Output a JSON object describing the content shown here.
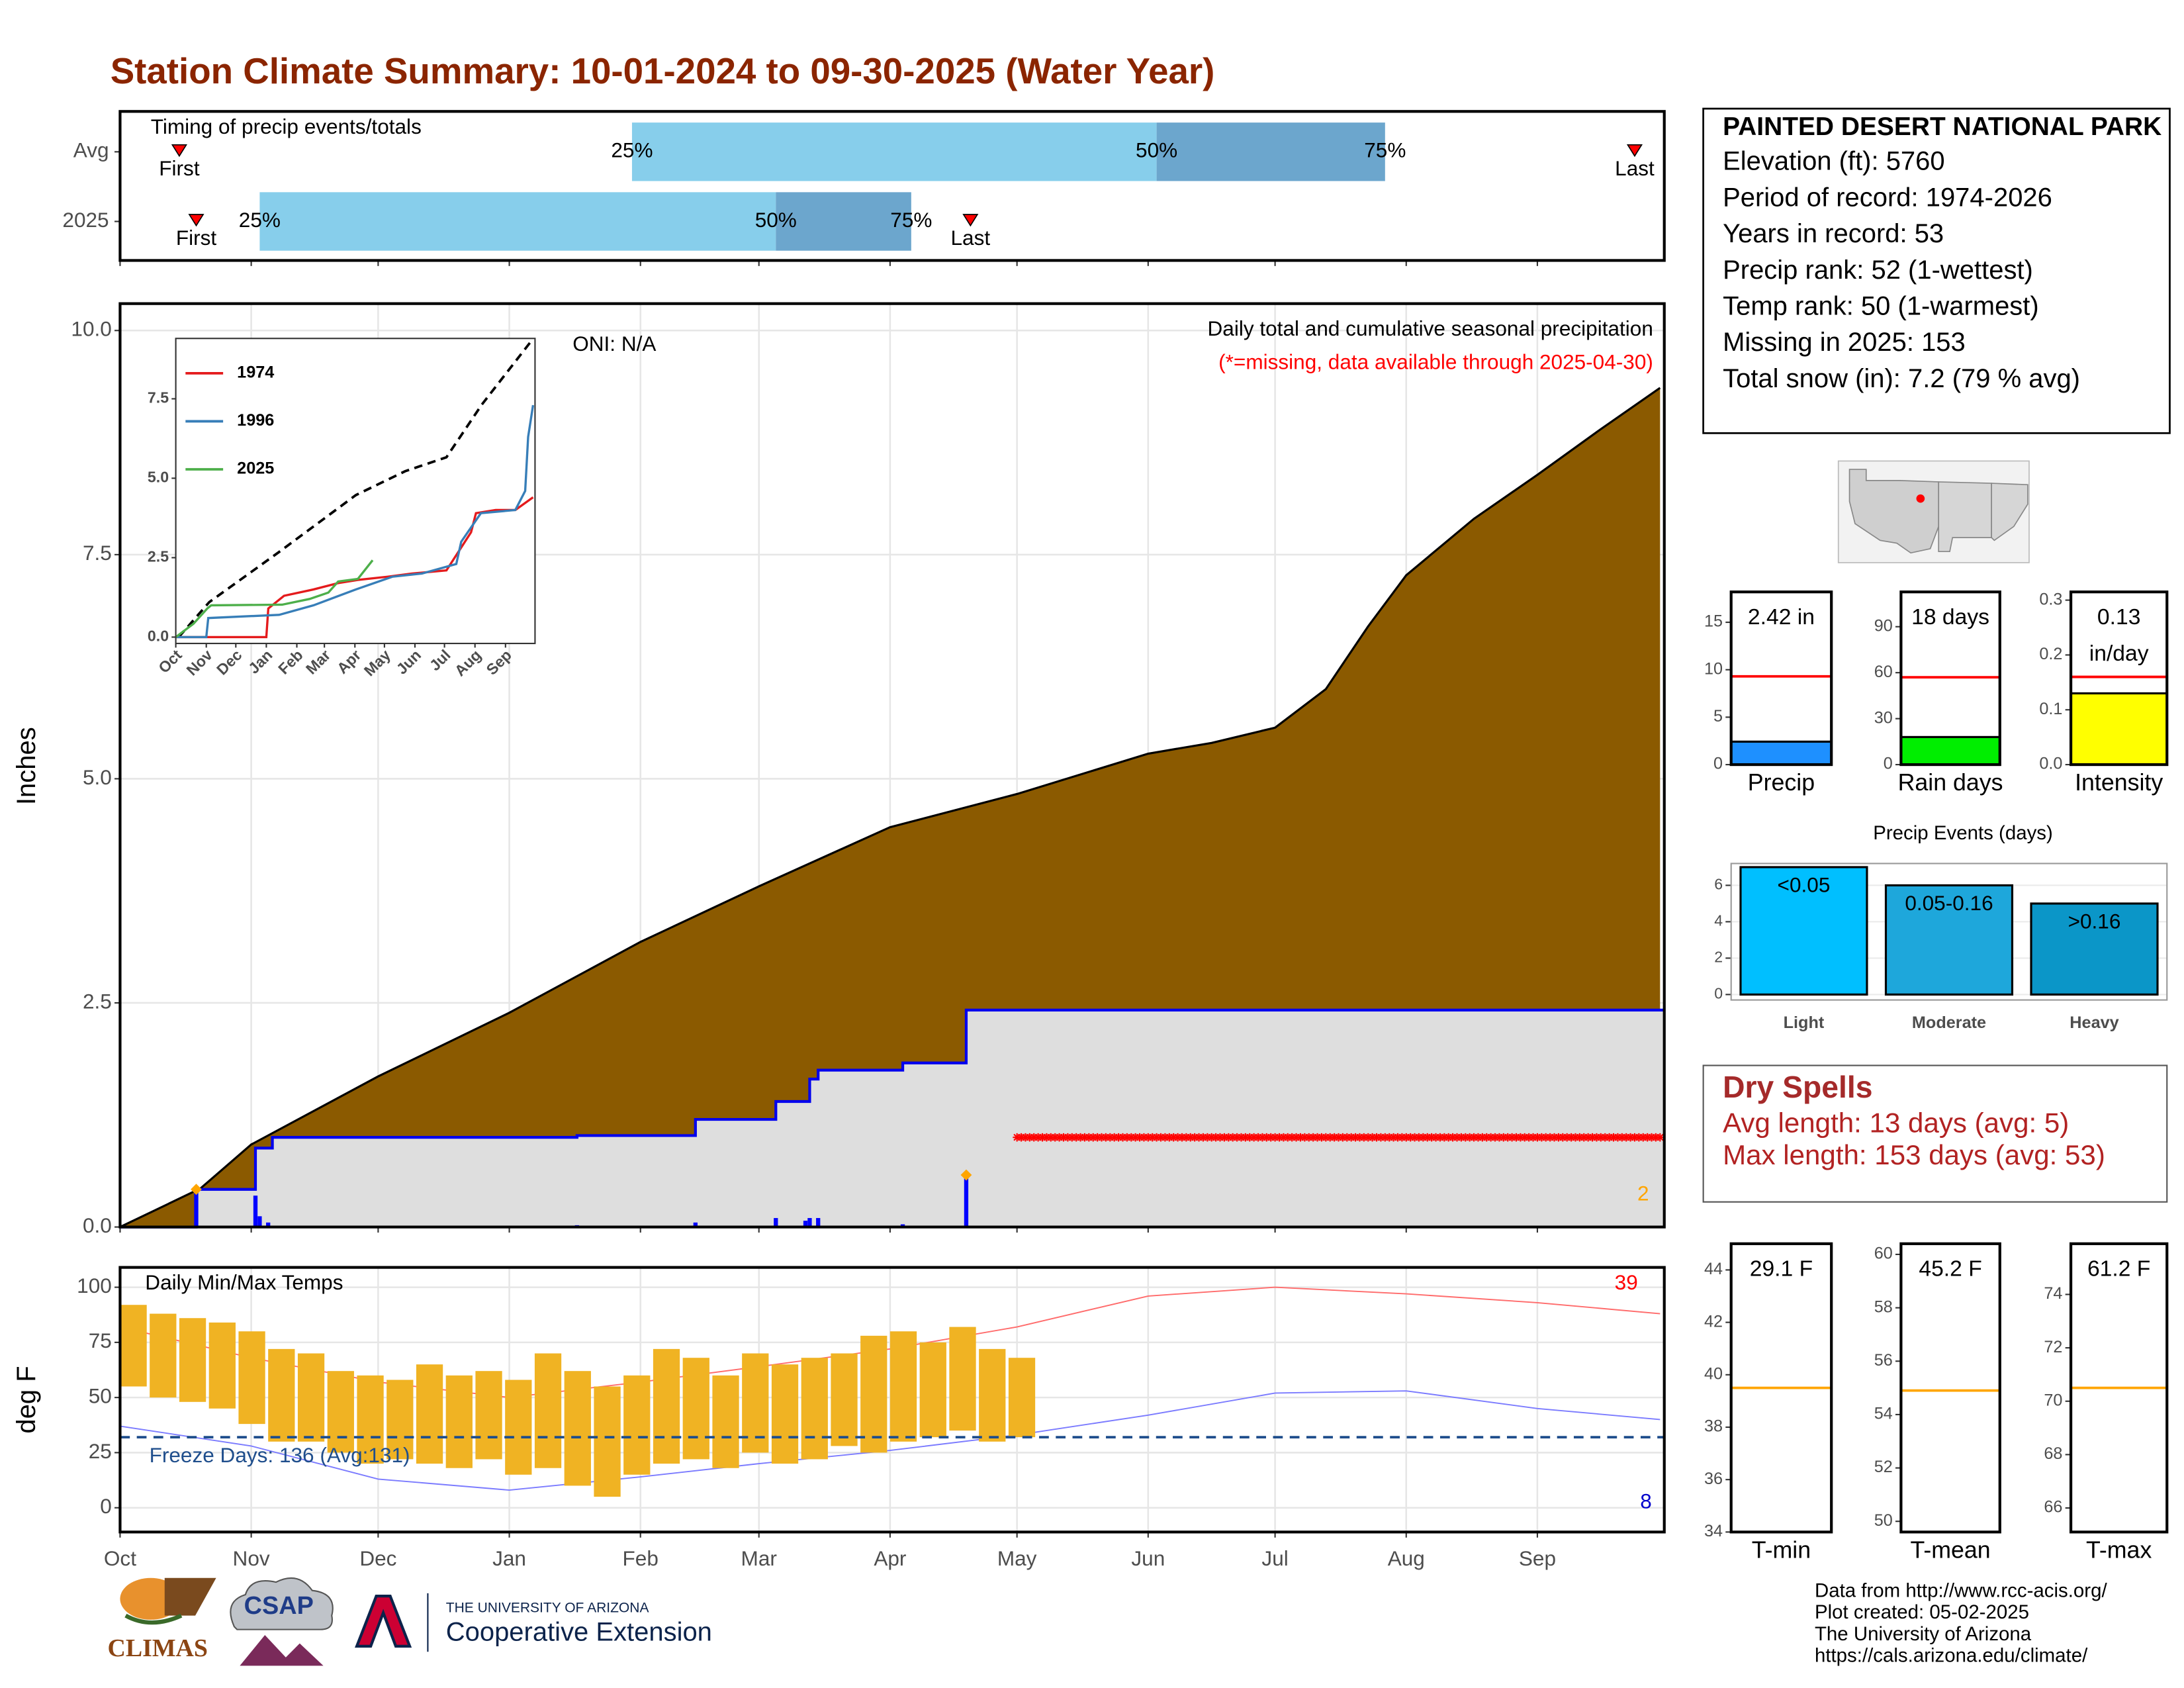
{
  "title": "Station Climate Summary: 10-01-2024 to 09-30-2025 (Water Year)",
  "station": {
    "name": "PAINTED DESERT NATIONAL PARK",
    "lines": [
      "Elevation (ft): 5760",
      "Period of record: 1974-2026",
      "Years in record: 53",
      "Precip rank: 52 (1-wettest)",
      "Temp rank: 50 (1-warmest)",
      "Missing in 2025: 153",
      "Total snow (in): 7.2 (79 % avg)"
    ]
  },
  "dry_spells": {
    "title": "Dry Spells",
    "lines": [
      "Avg length: 13 days (avg: 5)",
      "Max length: 153 days (avg: 53)"
    ]
  },
  "footer": [
    "Data from http://www.rcc-acis.org/",
    "Plot created: 05-02-2025",
    "The University of Arizona",
    "https://cals.arizona.edu/climate/"
  ],
  "logos": {
    "climas": "CLIMAS",
    "csap": "CSAP",
    "ua_small": "THE UNIVERSITY OF ARIZONA",
    "ua_ext": "Cooperative Extension"
  },
  "chart_data": [
    {
      "type": "timing",
      "annotation": "Timing of precip events/totals",
      "xlim": [
        0,
        365
      ],
      "categories": [
        "Avg",
        "2025"
      ],
      "first": [
        14,
        18
      ],
      "q25": [
        121,
        33
      ],
      "q50": [
        245,
        155
      ],
      "q75": [
        299,
        187
      ],
      "last": [
        358,
        201
      ],
      "labels": {
        "first": "First",
        "q25": "25%",
        "q50": "50%",
        "q75": "75%",
        "last": "Last"
      },
      "colors": {
        "light": "#87ceeb",
        "dark": "#6ca6cd",
        "marker": "#ff0000"
      }
    },
    {
      "type": "area",
      "ylabel": "Inches",
      "xlim": [
        0,
        365
      ],
      "ylim": [
        0,
        10.3
      ],
      "grid": true,
      "yticks": [
        {
          "value": 0,
          "label": "0.0"
        },
        {
          "value": 2.5,
          "label": "2.5"
        },
        {
          "value": 5,
          "label": "5.0"
        },
        {
          "value": 7.5,
          "label": "7.5"
        },
        {
          "value": 10,
          "label": "10.0"
        }
      ],
      "annotations": {
        "oni": "ONI: N/A",
        "title": "Daily total and cumulative seasonal precipitation",
        "missing_note": "(*=missing, data available through 2025-04-30)",
        "record_count": "2"
      },
      "average": {
        "color": "#8b5a00",
        "x": [
          0,
          19,
          31,
          61,
          92,
          123,
          151,
          182,
          212,
          243,
          258,
          273,
          285,
          295,
          304,
          320,
          335,
          350,
          364
        ],
        "values": [
          0,
          0.43,
          0.92,
          1.68,
          2.39,
          3.18,
          3.8,
          4.46,
          4.83,
          5.28,
          5.4,
          5.57,
          6.0,
          6.7,
          7.27,
          7.9,
          8.39,
          8.9,
          9.36
        ]
      },
      "current": {
        "color": "#0000ee",
        "fill": "#dedede",
        "x": [
          0,
          18,
          18,
          32,
          32,
          36,
          36,
          108,
          108,
          136,
          136,
          155,
          155,
          163,
          163,
          165,
          165,
          185,
          185,
          200,
          200,
          365
        ],
        "values": [
          0,
          0,
          0.42,
          0.42,
          0.88,
          0.88,
          1.0,
          1.0,
          1.02,
          1.02,
          1.2,
          1.2,
          1.4,
          1.4,
          1.65,
          1.65,
          1.75,
          1.75,
          1.83,
          1.83,
          2.42,
          2.42
        ]
      },
      "daily": {
        "color": "#0000ff",
        "x": [
          18,
          32,
          33,
          35,
          108,
          136,
          155,
          162,
          163,
          165,
          185,
          200
        ],
        "values": [
          0.42,
          0.35,
          0.12,
          0.05,
          0.02,
          0.05,
          0.1,
          0.07,
          0.1,
          0.1,
          0.03,
          0.58
        ]
      },
      "records": {
        "color": "#ffa500",
        "x": [
          18,
          200
        ],
        "values": [
          0.42,
          0.58
        ]
      },
      "missing": {
        "color": "#ff0000",
        "x_range": [
          212,
          364
        ],
        "value": 1.0
      }
    },
    {
      "type": "line",
      "xlim": [
        0,
        365
      ],
      "ylim": [
        -0.2,
        9.4
      ],
      "yticks": [
        {
          "value": 0,
          "label": "0.0"
        },
        {
          "value": 2.5,
          "label": "2.5"
        },
        {
          "value": 5,
          "label": "5.0"
        },
        {
          "value": 7.5,
          "label": "7.5"
        }
      ],
      "xticks": [
        {
          "value": 0,
          "label": "Oct"
        },
        {
          "value": 31,
          "label": "Nov"
        },
        {
          "value": 61,
          "label": "Dec"
        },
        {
          "value": 92,
          "label": "Jan"
        },
        {
          "value": 123,
          "label": "Feb"
        },
        {
          "value": 151,
          "label": "Mar"
        },
        {
          "value": 182,
          "label": "Apr"
        },
        {
          "value": 212,
          "label": "May"
        },
        {
          "value": 243,
          "label": "Jun"
        },
        {
          "value": 273,
          "label": "Jul"
        },
        {
          "value": 304,
          "label": "Aug"
        },
        {
          "value": 335,
          "label": "Sep"
        }
      ],
      "reference": {
        "color": "#000000",
        "x": [
          3,
          34,
          105,
          183,
          233,
          275,
          311,
          363
        ],
        "values": [
          0,
          1.1,
          2.68,
          4.47,
          5.22,
          5.66,
          7.32,
          9.39
        ]
      },
      "series": [
        {
          "name": "1974",
          "color": "#e41a1c",
          "x": [
            0,
            92,
            94,
            110,
            140,
            165,
            185,
            215,
            240,
            275,
            300,
            305,
            325,
            345,
            363
          ],
          "values": [
            0,
            0,
            0.9,
            1.3,
            1.5,
            1.7,
            1.8,
            1.9,
            2.0,
            2.1,
            3.3,
            3.9,
            4.0,
            4.0,
            4.4
          ]
        },
        {
          "name": "1996",
          "color": "#377eb8",
          "x": [
            0,
            31,
            33,
            105,
            140,
            183,
            220,
            250,
            285,
            290,
            310,
            345,
            355,
            358,
            363
          ],
          "values": [
            0,
            0,
            0.6,
            0.7,
            1.0,
            1.5,
            1.9,
            2.0,
            2.3,
            3.0,
            3.9,
            4.0,
            4.6,
            6.3,
            7.3
          ]
        },
        {
          "name": "2025",
          "color": "#4daf4a",
          "x": [
            0,
            18,
            32,
            36,
            108,
            136,
            155,
            165,
            185,
            200
          ],
          "values": [
            0,
            0.42,
            0.9,
            1.0,
            1.02,
            1.2,
            1.4,
            1.75,
            1.83,
            2.42
          ]
        }
      ]
    },
    {
      "type": "temperature",
      "title": "Daily Min/Max Temps",
      "ylabel": "deg F",
      "xlim": [
        0,
        365
      ],
      "ylim": [
        -11,
        109
      ],
      "grid": true,
      "yticks": [
        0,
        25,
        50,
        75,
        100
      ],
      "xticks": [
        {
          "value": 0,
          "label": "Oct"
        },
        {
          "value": 31,
          "label": "Nov"
        },
        {
          "value": 61,
          "label": "Dec"
        },
        {
          "value": 92,
          "label": "Jan"
        },
        {
          "value": 123,
          "label": "Feb"
        },
        {
          "value": 151,
          "label": "Mar"
        },
        {
          "value": 182,
          "label": "Apr"
        },
        {
          "value": 212,
          "label": "May"
        },
        {
          "value": 243,
          "label": "Jun"
        },
        {
          "value": 273,
          "label": "Jul"
        },
        {
          "value": 304,
          "label": "Aug"
        },
        {
          "value": 335,
          "label": "Sep"
        }
      ],
      "bars": {
        "color": "#f0b323",
        "x": [
          0,
          7,
          14,
          21,
          28,
          35,
          42,
          49,
          56,
          63,
          70,
          77,
          84,
          91,
          98,
          105,
          112,
          119,
          126,
          133,
          140,
          147,
          154,
          161,
          168,
          175,
          182,
          189,
          196,
          203,
          210
        ],
        "min": [
          55,
          50,
          48,
          45,
          38,
          30,
          30,
          25,
          20,
          22,
          20,
          18,
          22,
          15,
          18,
          10,
          5,
          15,
          20,
          22,
          18,
          25,
          20,
          22,
          28,
          25,
          30,
          32,
          35,
          30,
          32
        ],
        "max": [
          92,
          88,
          86,
          84,
          80,
          72,
          70,
          62,
          60,
          58,
          65,
          60,
          62,
          58,
          70,
          62,
          55,
          60,
          72,
          68,
          60,
          70,
          65,
          68,
          70,
          78,
          80,
          75,
          82,
          72,
          68
        ]
      },
      "avg_max": {
        "color": "#ff6b6b",
        "x": [
          0,
          31,
          61,
          92,
          123,
          151,
          182,
          212,
          243,
          273,
          304,
          335,
          364
        ],
        "values": [
          82,
          68,
          57,
          50,
          57,
          64,
          72,
          82,
          96,
          100,
          97,
          93,
          88
        ]
      },
      "avg_min": {
        "color": "#7b7bff",
        "x": [
          0,
          31,
          61,
          92,
          123,
          151,
          182,
          212,
          243,
          273,
          304,
          335,
          364
        ],
        "values": [
          37,
          28,
          13,
          8,
          14,
          20,
          26,
          33,
          42,
          52,
          53,
          45,
          40
        ]
      },
      "freeze": {
        "value": 32,
        "label": "Freeze Days: 136 (Avg:131)",
        "color": "#1f4e8c"
      },
      "max_count": "39",
      "min_count": "8"
    },
    {
      "type": "bar",
      "categories": [
        "Precip"
      ],
      "values": [
        2.42
      ],
      "value_labels": [
        "2.42 in"
      ],
      "average": 9.3,
      "average_color": "#ff0000",
      "color": "#1e90ff",
      "ylim": [
        0,
        18.2
      ],
      "yticks": [
        0,
        5,
        10,
        15
      ]
    },
    {
      "type": "bar",
      "categories": [
        "Rain days"
      ],
      "values": [
        18
      ],
      "value_labels": [
        "18 days"
      ],
      "average": 57,
      "average_color": "#ff0000",
      "color": "#00ee00",
      "ylim": [
        0,
        112.7
      ],
      "yticks": [
        0,
        30,
        60,
        90
      ]
    },
    {
      "type": "bar",
      "categories": [
        "Intensity"
      ],
      "values": [
        0.13
      ],
      "value_labels": [
        "0.13"
      ],
      "unit": "in/day",
      "average": 0.16,
      "average_color": "#ff0000",
      "color": "#ffff00",
      "ylim": [
        0,
        0.315
      ],
      "yticks": [
        {
          "value": 0,
          "label": "0.0"
        },
        {
          "value": 0.1,
          "label": "0.1"
        },
        {
          "value": 0.2,
          "label": "0.2"
        },
        {
          "value": 0.3,
          "label": "0.3"
        }
      ]
    },
    {
      "type": "bar",
      "title": "Precip Events (days)",
      "categories": [
        "Light",
        "Moderate",
        "Heavy"
      ],
      "values": [
        7,
        6,
        5
      ],
      "bar_labels": [
        "<0.05",
        "0.05-0.16",
        ">0.16"
      ],
      "colors": [
        "#00bfff",
        "#1ea7db",
        "#0b96c8"
      ],
      "ylim": [
        -0.3,
        7.2
      ],
      "yticks": [
        0,
        2,
        4,
        6
      ]
    },
    {
      "type": "bar",
      "categories": [
        "T-min"
      ],
      "values": [
        29.1
      ],
      "value_labels": [
        "29.1 F"
      ],
      "average": 39.5,
      "average_color": "#ffa500",
      "color": "#ffffff",
      "ylim": [
        34,
        45
      ],
      "yticks": [
        34,
        36,
        38,
        40,
        42,
        44
      ]
    },
    {
      "type": "bar",
      "categories": [
        "T-mean"
      ],
      "values": [
        45.2
      ],
      "value_labels": [
        "45.2 F"
      ],
      "average": 54.9,
      "average_color": "#ffa500",
      "color": "#ffffff",
      "ylim": [
        49.6,
        60.4
      ],
      "yticks": [
        50,
        52,
        54,
        56,
        58,
        60
      ]
    },
    {
      "type": "bar",
      "categories": [
        "T-max"
      ],
      "values": [
        61.2
      ],
      "value_labels": [
        "61.2 F"
      ],
      "average": 70.5,
      "average_color": "#ffa500",
      "color": "#ffffff",
      "ylim": [
        65.1,
        75.9
      ],
      "yticks": [
        66,
        68,
        70,
        72,
        74
      ]
    }
  ]
}
